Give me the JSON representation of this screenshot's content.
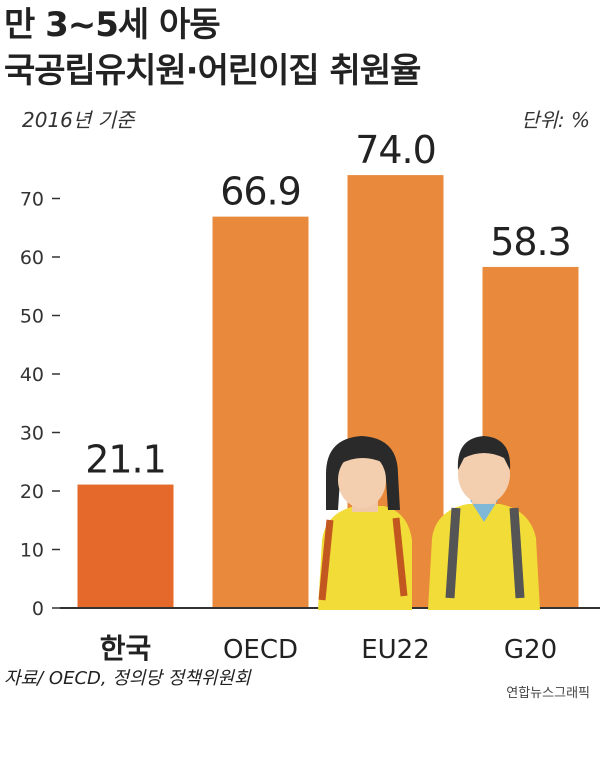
{
  "header": {
    "title_line1": "만 3~5세 아동",
    "title_line2": "국공립유치원·어린이집 취원율",
    "subtitle": "2016년 기준",
    "unit": "단위: %"
  },
  "footer": {
    "source": "자료/ OECD, 정의당 정책위원회",
    "credit": "연합뉴스그래픽"
  },
  "colors": {
    "highlight_bar": "#e4692a",
    "bar": "#e8893b",
    "axis": "#333333",
    "value_text": "#222222"
  },
  "chart_data": {
    "type": "bar",
    "title": "만 3~5세 아동 국공립유치원·어린이집 취원율",
    "subtitle": "2016년 기준",
    "unit": "%",
    "categories": [
      "한국",
      "OECD",
      "EU22",
      "G20"
    ],
    "values": [
      21.1,
      66.9,
      74.0,
      58.3
    ],
    "value_labels": [
      "21.1",
      "66.9",
      "74.0",
      "58.3"
    ],
    "highlight_index": 0,
    "ylim": [
      0,
      70
    ],
    "yticks": [
      0,
      10,
      20,
      30,
      40,
      50,
      60,
      70
    ],
    "grid": false,
    "xlabel": "",
    "ylabel": ""
  }
}
